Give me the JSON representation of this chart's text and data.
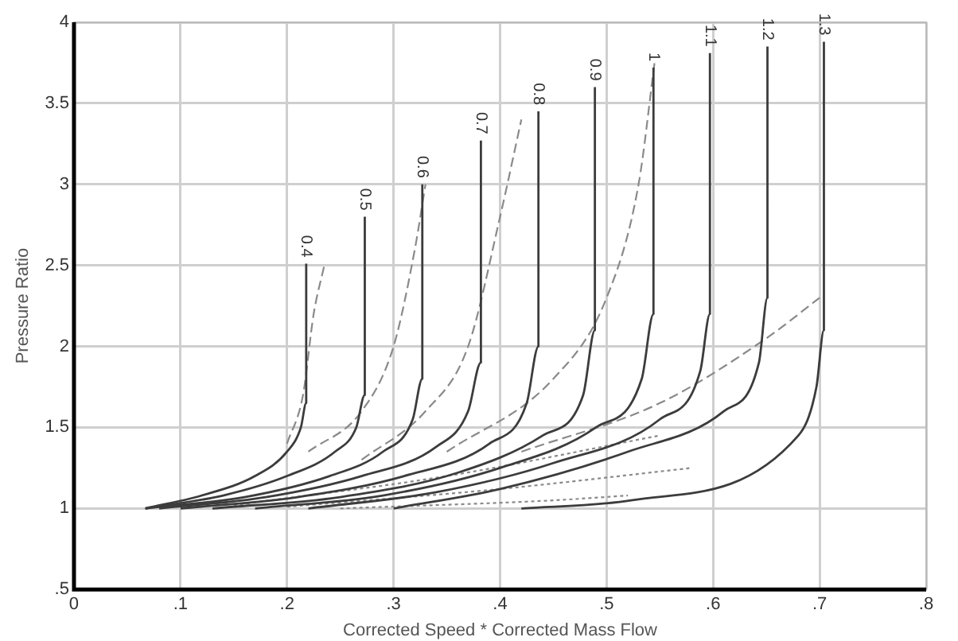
{
  "chart_data": {
    "type": "line",
    "xlabel": "Corrected Speed * Corrected Mass Flow",
    "ylabel": "Pressure Ratio",
    "xlim": [
      0,
      0.8
    ],
    "xticks": [
      0,
      {
        "value": 0.1,
        "label": ".1"
      },
      {
        "value": 0.2,
        "label": ".2"
      },
      {
        "value": 0.3,
        "label": ".3"
      },
      {
        "value": 0.4,
        "label": ".4"
      },
      {
        "value": 0.5,
        "label": ".5"
      },
      {
        "value": 0.6,
        "label": ".6"
      },
      {
        "value": 0.7,
        "label": ".7"
      },
      {
        "value": 0.8,
        "label": ".8"
      }
    ],
    "ylim": [
      0.5,
      4
    ],
    "yticks": [
      {
        "value": 0.5,
        "label": ".5"
      },
      1,
      1.5,
      2,
      2.5,
      3,
      3.5,
      4
    ],
    "grid": true,
    "legend": false,
    "marker": "none",
    "series": [
      {
        "color": "#3c3c3c",
        "line_style": "solid",
        "x": [
          0.067,
          0.12,
          0.17,
          0.2,
          0.213,
          0.218,
          0.218
        ],
        "values": [
          1.0,
          1.08,
          1.2,
          1.35,
          1.5,
          1.65,
          2.51
        ]
      },
      {
        "color": "#3c3c3c",
        "line_style": "solid",
        "x": [
          0.067,
          0.14,
          0.2,
          0.245,
          0.265,
          0.273,
          0.273
        ],
        "values": [
          1.0,
          1.08,
          1.2,
          1.35,
          1.5,
          1.7,
          2.8
        ]
      },
      {
        "color": "#3c3c3c",
        "line_style": "solid",
        "x": [
          0.067,
          0.16,
          0.24,
          0.29,
          0.318,
          0.327,
          0.327
        ],
        "values": [
          1.0,
          1.07,
          1.2,
          1.35,
          1.55,
          1.8,
          3.0
        ]
      },
      {
        "color": "#3c3c3c",
        "line_style": "solid",
        "x": [
          0.08,
          0.18,
          0.27,
          0.34,
          0.37,
          0.382,
          0.382
        ],
        "values": [
          1.0,
          1.07,
          1.2,
          1.38,
          1.6,
          1.9,
          3.27
        ]
      },
      {
        "color": "#3c3c3c",
        "line_style": "solid",
        "x": [
          0.1,
          0.21,
          0.31,
          0.39,
          0.425,
          0.436,
          0.436
        ],
        "values": [
          1.0,
          1.07,
          1.2,
          1.4,
          1.65,
          2.0,
          3.45
        ]
      },
      {
        "color": "#3c3c3c",
        "line_style": "solid",
        "x": [
          0.13,
          0.25,
          0.36,
          0.44,
          0.478,
          0.489,
          0.489
        ],
        "values": [
          1.0,
          1.07,
          1.22,
          1.45,
          1.7,
          2.1,
          3.6
        ]
      },
      {
        "color": "#3c3c3c",
        "line_style": "solid",
        "x": [
          0.17,
          0.29,
          0.4,
          0.49,
          0.533,
          0.544,
          0.544
        ],
        "values": [
          1.0,
          1.08,
          1.25,
          1.5,
          1.8,
          2.2,
          3.72
        ]
      },
      {
        "color": "#3c3c3c",
        "line_style": "solid",
        "x": [
          0.22,
          0.34,
          0.45,
          0.55,
          0.588,
          0.597,
          0.597
        ],
        "values": [
          1.0,
          1.1,
          1.28,
          1.55,
          1.85,
          2.2,
          3.81
        ]
      },
      {
        "color": "#3c3c3c",
        "line_style": "solid",
        "x": [
          0.3,
          0.4,
          0.52,
          0.61,
          0.643,
          0.651,
          0.651
        ],
        "values": [
          1.0,
          1.12,
          1.35,
          1.6,
          1.9,
          2.3,
          3.85
        ]
      },
      {
        "color": "#3c3c3c",
        "line_style": "solid",
        "x": [
          0.42,
          0.523,
          0.68,
          0.697,
          0.704,
          0.704
        ],
        "values": [
          1.0,
          1.05,
          1.45,
          1.75,
          2.1,
          3.88
        ]
      },
      {
        "color": "#8a8a8a",
        "line_style": "dashed",
        "x": [
          0.2,
          0.215,
          0.225,
          0.235
        ],
        "values": [
          1.4,
          1.7,
          2.2,
          2.5
        ]
      },
      {
        "color": "#8a8a8a",
        "line_style": "dashed",
        "x": [
          0.22,
          0.27,
          0.3,
          0.32,
          0.33
        ],
        "values": [
          1.35,
          1.6,
          2.0,
          2.6,
          3.0
        ]
      },
      {
        "color": "#8a8a8a",
        "line_style": "dashed",
        "x": [
          0.27,
          0.33,
          0.37,
          0.4,
          0.42
        ],
        "values": [
          1.3,
          1.6,
          2.0,
          2.8,
          3.4
        ]
      },
      {
        "color": "#8a8a8a",
        "line_style": "dashed",
        "x": [
          0.35,
          0.45,
          0.5,
          0.53,
          0.545
        ],
        "values": [
          1.35,
          1.8,
          2.3,
          3.0,
          3.75
        ]
      },
      {
        "color": "#8a8a8a",
        "line_style": "dashed",
        "x": [
          0.42,
          0.55,
          0.65,
          0.7
        ],
        "values": [
          1.35,
          1.65,
          2.05,
          2.3
        ]
      },
      {
        "color": "#8a8a8a",
        "line_style": "dotted",
        "x": [
          0.15,
          0.35,
          0.55
        ],
        "values": [
          1.02,
          1.2,
          1.45
        ]
      },
      {
        "color": "#8a8a8a",
        "line_style": "dotted",
        "x": [
          0.2,
          0.4,
          0.58
        ],
        "values": [
          1.01,
          1.12,
          1.25
        ]
      },
      {
        "color": "#8a8a8a",
        "line_style": "dotted",
        "x": [
          0.25,
          0.45,
          0.52
        ],
        "values": [
          1.0,
          1.05,
          1.08
        ]
      }
    ],
    "annotations": [
      {
        "text": "0.4",
        "x": 0.218,
        "y": 2.51
      },
      {
        "text": "0.5",
        "x": 0.273,
        "y": 2.8
      },
      {
        "text": "0.6",
        "x": 0.327,
        "y": 3.0
      },
      {
        "text": "0.7",
        "x": 0.382,
        "y": 3.27
      },
      {
        "text": "0.8",
        "x": 0.436,
        "y": 3.45
      },
      {
        "text": "0.9",
        "x": 0.489,
        "y": 3.6
      },
      {
        "text": "1",
        "x": 0.544,
        "y": 3.72
      },
      {
        "text": "1.1",
        "x": 0.597,
        "y": 3.81
      },
      {
        "text": "1.2",
        "x": 0.651,
        "y": 3.85
      },
      {
        "text": "1.3",
        "x": 0.704,
        "y": 3.88
      }
    ]
  }
}
